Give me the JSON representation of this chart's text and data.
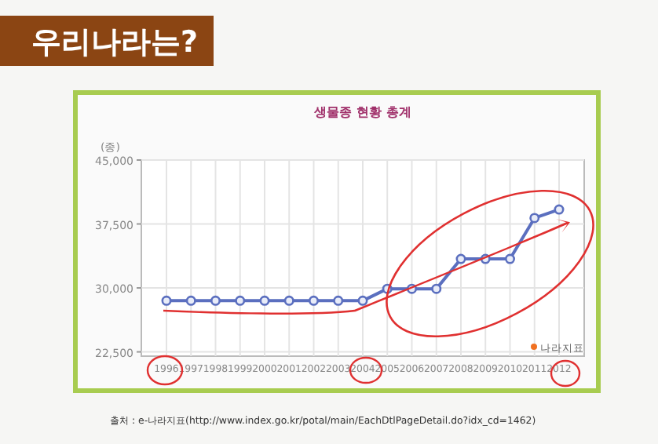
{
  "chart_data": {
    "type": "line",
    "title": "생물종 현황 총계",
    "ylabel": "(종)",
    "annotations": [
      "우리나라는?",
      "나라지표",
      "출처 : e-나라지표(http://www.index.go.kr/potal/main/EachDtlPageDetail.do?idx_cd=1462)"
    ],
    "categories": [
      "1996",
      "1997",
      "1998",
      "1999",
      "2000",
      "2001",
      "2002",
      "2003",
      "2004",
      "2005",
      "2006",
      "2007",
      "2008",
      "2009",
      "2010",
      "2011",
      "2012"
    ],
    "series": [
      {
        "color": "#5b6fbf",
        "values": [
          28500,
          28500,
          28500,
          28500,
          28500,
          28500,
          28500,
          28500,
          28500,
          29900,
          29900,
          29900,
          33400,
          33400,
          33400,
          38200,
          39200
        ]
      }
    ],
    "ylim": [
      22000,
      45000
    ],
    "yticks": [
      {
        "value": 22500,
        "label": "22,500"
      },
      {
        "value": 30000,
        "label": "30,000"
      },
      {
        "value": 37500,
        "label": "37,500"
      },
      {
        "value": 45000,
        "label": "45,000"
      }
    ],
    "grid": true,
    "marker": "circle",
    "line_style": "solid"
  }
}
